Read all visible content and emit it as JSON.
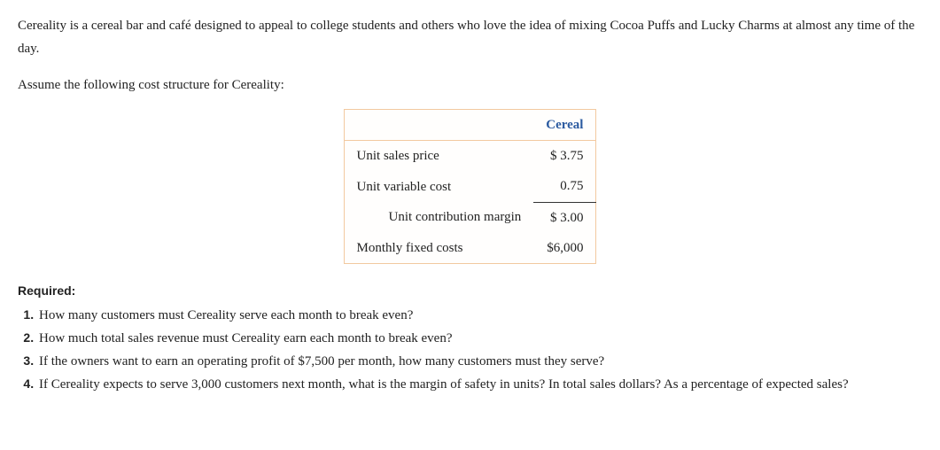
{
  "intro": {
    "p1": "Cereality is a cereal bar and café designed to appeal to college students and others who love the idea of mixing Cocoa Puffs and Lucky Charms at almost any time of the day.",
    "p2": "Assume the following cost structure for Cereality:"
  },
  "table": {
    "header_empty": "",
    "header_cereal": "Cereal",
    "rows": {
      "r1_label": "Unit sales price",
      "r1_value": "$  3.75",
      "r2_label": "Unit variable cost",
      "r2_value": "0.75",
      "r3_label": "Unit contribution margin",
      "r3_value": "$  3.00",
      "r4_label": "Monthly fixed costs",
      "r4_value": "$6,000"
    },
    "styling": {
      "border_color": "#f2c9a0",
      "header_text_color": "#2b5aa0",
      "font_size_pt": 11,
      "underline_row_index": 1
    }
  },
  "required": {
    "heading": "Required:",
    "items": {
      "q1": "How many customers must Cereality serve each month to break even?",
      "q2": "How much total sales revenue must Cereality earn each month to break even?",
      "q3": "If the owners want to earn an operating profit of $7,500 per month, how many customers must they serve?",
      "q4": "If Cereality expects to serve 3,000 customers next month, what is the margin of safety in units? In total sales dollars? As a percentage of expected sales?"
    }
  }
}
